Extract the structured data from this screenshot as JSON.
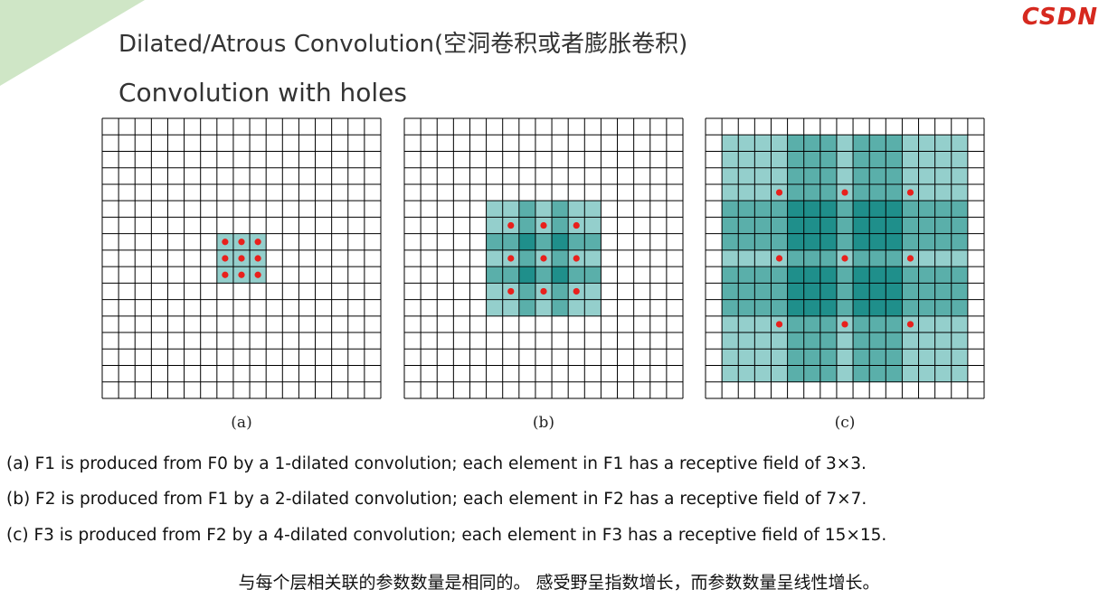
{
  "header": {
    "logo": "CSDN",
    "title": "Dilated/Atrous Convolution(空洞卷积或者膨胀卷积)",
    "subtitle": "Convolution with holes"
  },
  "panels": [
    {
      "label": "(a)",
      "dilation": 1,
      "receptive_field": 3
    },
    {
      "label": "(b)",
      "dilation": 2,
      "receptive_field": 7
    },
    {
      "label": "(c)",
      "dilation": 4,
      "receptive_field": 15
    }
  ],
  "grid_size": 17,
  "colors": {
    "light_teal": "#94cfcc",
    "mid_teal": "#5aafaa",
    "dark_teal": "#1f8f8b",
    "dot_red": "#e8201c",
    "grid_line": "#000000",
    "logo_red": "#d6291f",
    "accent_green": "#cfe6c6"
  },
  "captions": [
    "(a) F1 is produced from F0 by a 1-dilated convolution; each element in F1 has a receptive field of 3×3.",
    "(b) F2 is produced from F1 by a 2-dilated convolution; each element in F2 has a receptive field of 7×7.",
    "(c) F3 is produced from F2 by a 4-dilated convolution; each element in F3 has a receptive field of 15×15."
  ],
  "summary": "与每个层相关联的参数数量是相同的。 感受野呈指数增长，而参数数量呈线性增长。"
}
